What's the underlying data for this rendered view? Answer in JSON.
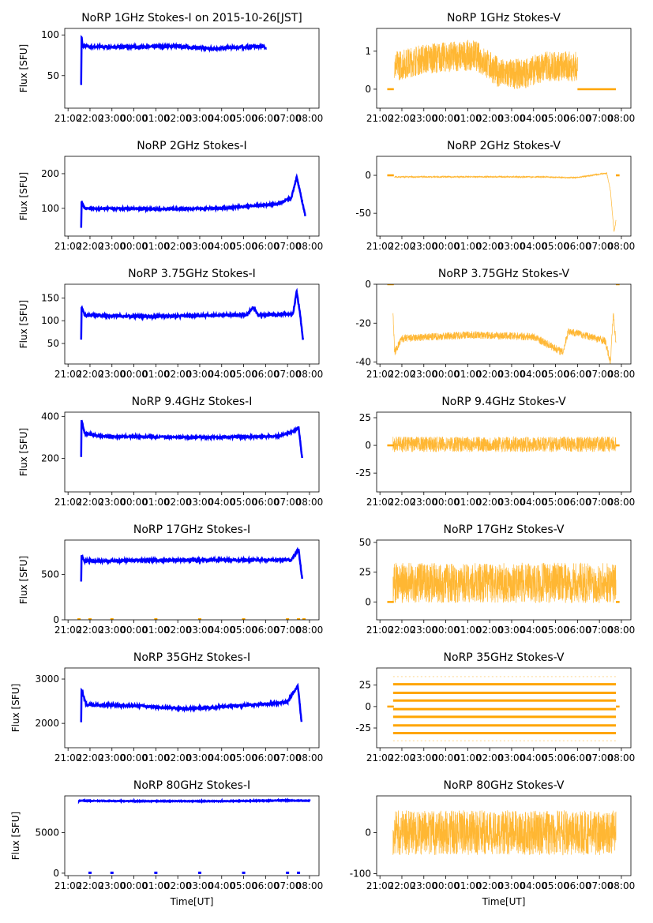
{
  "chart_data": {
    "type": "scatter",
    "xlim": [
      "20:51",
      "08:26"
    ],
    "xticks": [
      "21:00",
      "22:00",
      "23:00",
      "00:00",
      "01:00",
      "02:00",
      "03:00",
      "04:00",
      "05:00",
      "06:00",
      "07:00",
      "08:00"
    ],
    "xlabel": "Time[UT]",
    "ylabel": "Flux [SFU]",
    "colors": {
      "stokes_i": "#0000ff",
      "stokes_v": "#ffa500"
    },
    "panels": [
      {
        "title": "NoRP 1GHz Stokes-I on 2015-10-26[JST]",
        "col": 0,
        "ylim": [
          10,
          108
        ],
        "yticks": [
          50,
          100
        ],
        "spread": 3,
        "profile": [
          [
            "21:36",
            40
          ],
          [
            "21:37",
            98
          ],
          [
            "21:40",
            86
          ],
          [
            "23:00",
            85
          ],
          [
            "02:00",
            86
          ],
          [
            "03:30",
            83
          ],
          [
            "05:40",
            86
          ],
          [
            "06:00",
            85
          ]
        ]
      },
      {
        "title": "NoRP 1GHz Stokes-V",
        "col": 1,
        "ylim": [
          -0.5,
          1.6
        ],
        "yticks": [
          0,
          1
        ],
        "spread": 0.8,
        "profile": [
          [
            "21:40",
            0.6
          ],
          [
            "23:00",
            0.8
          ],
          [
            "01:20",
            0.9
          ],
          [
            "02:30",
            0.4
          ],
          [
            "03:30",
            0.4
          ],
          [
            "04:30",
            0.6
          ],
          [
            "06:00",
            0.6
          ]
        ],
        "zero_segments": [
          [
            "21:20",
            "21:38"
          ],
          [
            "06:00",
            "07:45"
          ]
        ]
      },
      {
        "title": "NoRP 2GHz Stokes-I",
        "col": 0,
        "ylim": [
          20,
          250
        ],
        "yticks": [
          100,
          200
        ],
        "spread": 5,
        "profile": [
          [
            "21:36",
            45
          ],
          [
            "21:37",
            118
          ],
          [
            "21:45",
            100
          ],
          [
            "01:00",
            98
          ],
          [
            "04:00",
            100
          ],
          [
            "05:00",
            105
          ],
          [
            "06:30",
            112
          ],
          [
            "07:10",
            130
          ],
          [
            "07:25",
            190
          ],
          [
            "07:40",
            120
          ],
          [
            "07:48",
            80
          ]
        ]
      },
      {
        "title": "NoRP 2GHz Stokes-V",
        "col": 1,
        "ylim": [
          -80,
          25
        ],
        "yticks": [
          -50,
          0
        ],
        "spread": 2,
        "profile": [
          [
            "21:40",
            -2
          ],
          [
            "04:00",
            -2
          ],
          [
            "06:00",
            -3
          ],
          [
            "07:20",
            3
          ],
          [
            "07:30",
            -20
          ],
          [
            "07:40",
            -75
          ],
          [
            "07:45",
            -60
          ]
        ],
        "zero_segments": [
          [
            "21:20",
            "21:38"
          ],
          [
            "07:45",
            "07:55"
          ]
        ]
      },
      {
        "title": "NoRP 3.75GHz Stokes-I",
        "col": 0,
        "ylim": [
          5,
          180
        ],
        "yticks": [
          50,
          100,
          150
        ],
        "spread": 5,
        "profile": [
          [
            "21:36",
            60
          ],
          [
            "21:37",
            130
          ],
          [
            "21:45",
            112
          ],
          [
            "00:30",
            109
          ],
          [
            "04:00",
            112
          ],
          [
            "05:10",
            113
          ],
          [
            "05:25",
            130
          ],
          [
            "05:40",
            112
          ],
          [
            "07:15",
            115
          ],
          [
            "07:25",
            165
          ],
          [
            "07:35",
            110
          ],
          [
            "07:42",
            60
          ]
        ]
      },
      {
        "title": "NoRP 3.75GHz Stokes-V",
        "col": 1,
        "ylim": [
          -41,
          0
        ],
        "yticks": [
          -40,
          -20,
          0
        ],
        "spread": 4,
        "profile": [
          [
            "21:36",
            -15
          ],
          [
            "21:40",
            -35
          ],
          [
            "22:00",
            -28
          ],
          [
            "01:00",
            -26
          ],
          [
            "04:00",
            -27
          ],
          [
            "05:20",
            -35
          ],
          [
            "05:35",
            -24
          ],
          [
            "07:15",
            -29
          ],
          [
            "07:30",
            -40
          ],
          [
            "07:38",
            -15
          ],
          [
            "07:45",
            -30
          ]
        ],
        "zero_segments": [
          [
            "21:20",
            "21:38"
          ],
          [
            "07:45",
            "07:55"
          ]
        ]
      },
      {
        "title": "NoRP 9.4GHz Stokes-I",
        "col": 0,
        "ylim": [
          40,
          420
        ],
        "yticks": [
          200,
          400
        ],
        "spread": 8,
        "profile": [
          [
            "21:36",
            210
          ],
          [
            "21:37",
            385
          ],
          [
            "21:45",
            320
          ],
          [
            "22:30",
            305
          ],
          [
            "03:00",
            300
          ],
          [
            "06:30",
            305
          ],
          [
            "07:20",
            330
          ],
          [
            "07:30",
            350
          ],
          [
            "07:40",
            200
          ]
        ]
      },
      {
        "title": "NoRP 9.4GHz Stokes-V",
        "col": 1,
        "ylim": [
          -42,
          30
        ],
        "yticks": [
          -25,
          0,
          25
        ],
        "spread": 14,
        "profile": [
          [
            "21:36",
            1
          ],
          [
            "07:45",
            1
          ]
        ],
        "zero_segments": [
          [
            "21:20",
            "21:38"
          ],
          [
            "07:45",
            "07:55"
          ]
        ]
      },
      {
        "title": "NoRP 17GHz Stokes-I",
        "col": 0,
        "ylim": [
          0,
          880
        ],
        "yticks": [
          0,
          500
        ],
        "spread": 25,
        "profile": [
          [
            "21:36",
            420
          ],
          [
            "21:37",
            700
          ],
          [
            "21:45",
            650
          ],
          [
            "03:00",
            660
          ],
          [
            "07:10",
            660
          ],
          [
            "07:30",
            780
          ],
          [
            "07:40",
            450
          ]
        ],
        "zero_markers": [
          "21:30",
          "22:00",
          "23:00",
          "01:00",
          "03:00",
          "05:00",
          "07:00",
          "07:30",
          "07:45"
        ]
      },
      {
        "title": "NoRP 17GHz Stokes-V",
        "col": 1,
        "ylim": [
          -15,
          52
        ],
        "yticks": [
          0,
          25,
          50
        ],
        "spread": 34,
        "profile": [
          [
            "21:36",
            16
          ],
          [
            "07:45",
            16
          ]
        ],
        "zero_segments": [
          [
            "21:20",
            "21:38"
          ],
          [
            "07:45",
            "07:55"
          ]
        ]
      },
      {
        "title": "NoRP 35GHz Stokes-I",
        "col": 0,
        "ylim": [
          1450,
          3250
        ],
        "yticks": [
          2000,
          3000
        ],
        "spread": 50,
        "profile": [
          [
            "21:36",
            2050
          ],
          [
            "21:37",
            2750
          ],
          [
            "21:50",
            2420
          ],
          [
            "00:00",
            2400
          ],
          [
            "02:30",
            2330
          ],
          [
            "05:00",
            2400
          ],
          [
            "07:00",
            2480
          ],
          [
            "07:28",
            2850
          ],
          [
            "07:38",
            2050
          ]
        ]
      },
      {
        "title": "NoRP 35GHz Stokes-V",
        "col": 1,
        "ylim": [
          -48,
          45
        ],
        "yticks": [
          -25,
          0,
          25
        ],
        "levels": [
          35,
          26,
          16,
          7,
          -3,
          -12,
          -22,
          -31,
          -40
        ],
        "level_range": [
          "21:36",
          "07:45"
        ],
        "zero_segments": [
          [
            "21:20",
            "21:38"
          ],
          [
            "07:45",
            "07:55"
          ]
        ]
      },
      {
        "title": "NoRP 80GHz Stokes-I",
        "col": 0,
        "ylim": [
          -300,
          9500
        ],
        "yticks": [
          0,
          5000
        ],
        "spread": 100,
        "profile": [
          [
            "21:30",
            8900
          ],
          [
            "00:00",
            8850
          ],
          [
            "04:00",
            8850
          ],
          [
            "07:00",
            8950
          ],
          [
            "08:00",
            8900
          ]
        ],
        "zero_markers": [
          "22:00",
          "23:00",
          "01:00",
          "03:00",
          "05:00",
          "07:00",
          "07:30"
        ]
      },
      {
        "title": "NoRP 80GHz Stokes-V",
        "col": 1,
        "ylim": [
          -105,
          90
        ],
        "yticks": [
          -100,
          0
        ],
        "spread": 110,
        "profile": [
          [
            "21:36",
            0
          ],
          [
            "07:45",
            0
          ]
        ]
      }
    ]
  }
}
